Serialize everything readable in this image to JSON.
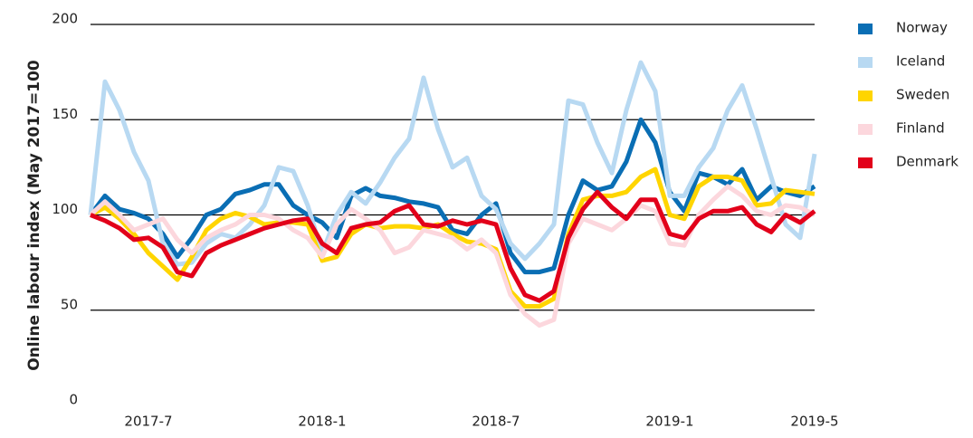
{
  "chart_data": {
    "type": "line",
    "y_label": "Online labour index (May 2017=100",
    "categories": [
      null,
      null,
      null,
      null,
      "2017-7",
      null,
      null,
      null,
      null,
      null,
      null,
      null,
      null,
      null,
      null,
      null,
      "2018-1",
      null,
      null,
      null,
      null,
      null,
      null,
      null,
      null,
      null,
      null,
      null,
      "2018-7",
      null,
      null,
      null,
      null,
      null,
      null,
      null,
      null,
      null,
      null,
      null,
      "2019-1",
      null,
      null,
      null,
      null,
      null,
      null,
      null,
      null,
      null,
      "2019-5"
    ],
    "ylim": [
      0,
      200
    ],
    "yticks": [
      0,
      50,
      100,
      150,
      200
    ],
    "grid": true,
    "legend": "right",
    "series": [
      {
        "name": "Norway",
        "color": "#0a6eb4",
        "values": [
          100,
          110,
          103,
          101,
          98,
          90,
          78,
          88,
          100,
          103,
          111,
          113,
          116,
          116,
          105,
          100,
          96,
          88,
          110,
          114,
          110,
          109,
          107,
          106,
          104,
          92,
          90,
          100,
          106,
          80,
          70,
          70,
          72,
          100,
          118,
          113,
          115,
          128,
          150,
          138,
          112,
          102,
          122,
          120,
          116,
          124,
          108,
          115,
          112,
          110,
          115
        ]
      },
      {
        "name": "Iceland",
        "color": "#b8d9f2",
        "values": [
          100,
          170,
          155,
          133,
          118,
          85,
          74,
          75,
          85,
          90,
          88,
          95,
          105,
          125,
          123,
          105,
          80,
          100,
          112,
          106,
          117,
          130,
          140,
          172,
          145,
          125,
          130,
          110,
          103,
          85,
          77,
          85,
          95,
          160,
          158,
          138,
          122,
          155,
          180,
          165,
          110,
          110,
          125,
          135,
          155,
          168,
          145,
          120,
          95,
          88,
          132
        ]
      },
      {
        "name": "Sweden",
        "color": "#ffd500",
        "values": [
          100,
          104,
          98,
          90,
          80,
          73,
          66,
          78,
          92,
          98,
          101,
          99,
          95,
          96,
          96,
          95,
          76,
          78,
          90,
          95,
          93,
          94,
          94,
          93,
          95,
          90,
          86,
          85,
          82,
          60,
          52,
          52,
          56,
          90,
          108,
          110,
          110,
          112,
          120,
          124,
          100,
          98,
          115,
          120,
          120,
          118,
          105,
          106,
          113,
          112,
          111
        ]
      },
      {
        "name": "Finland",
        "color": "#fcd7dd",
        "values": [
          100,
          107,
          100,
          92,
          95,
          98,
          87,
          80,
          88,
          92,
          95,
          100,
          100,
          98,
          92,
          88,
          78,
          95,
          103,
          98,
          92,
          80,
          83,
          92,
          90,
          88,
          82,
          87,
          80,
          58,
          48,
          42,
          45,
          85,
          98,
          95,
          92,
          98,
          105,
          102,
          85,
          84,
          100,
          108,
          115,
          110,
          102,
          100,
          105,
          104,
          100
        ]
      },
      {
        "name": "Denmark",
        "color": "#e2001a",
        "values": [
          100,
          97,
          93,
          87,
          88,
          83,
          70,
          68,
          80,
          84,
          87,
          90,
          93,
          95,
          97,
          98,
          85,
          80,
          93,
          95,
          96,
          102,
          105,
          95,
          94,
          97,
          95,
          97,
          95,
          72,
          58,
          55,
          60,
          88,
          103,
          112,
          104,
          98,
          108,
          108,
          90,
          88,
          98,
          102,
          102,
          104,
          95,
          91,
          100,
          96,
          102
        ]
      }
    ]
  }
}
